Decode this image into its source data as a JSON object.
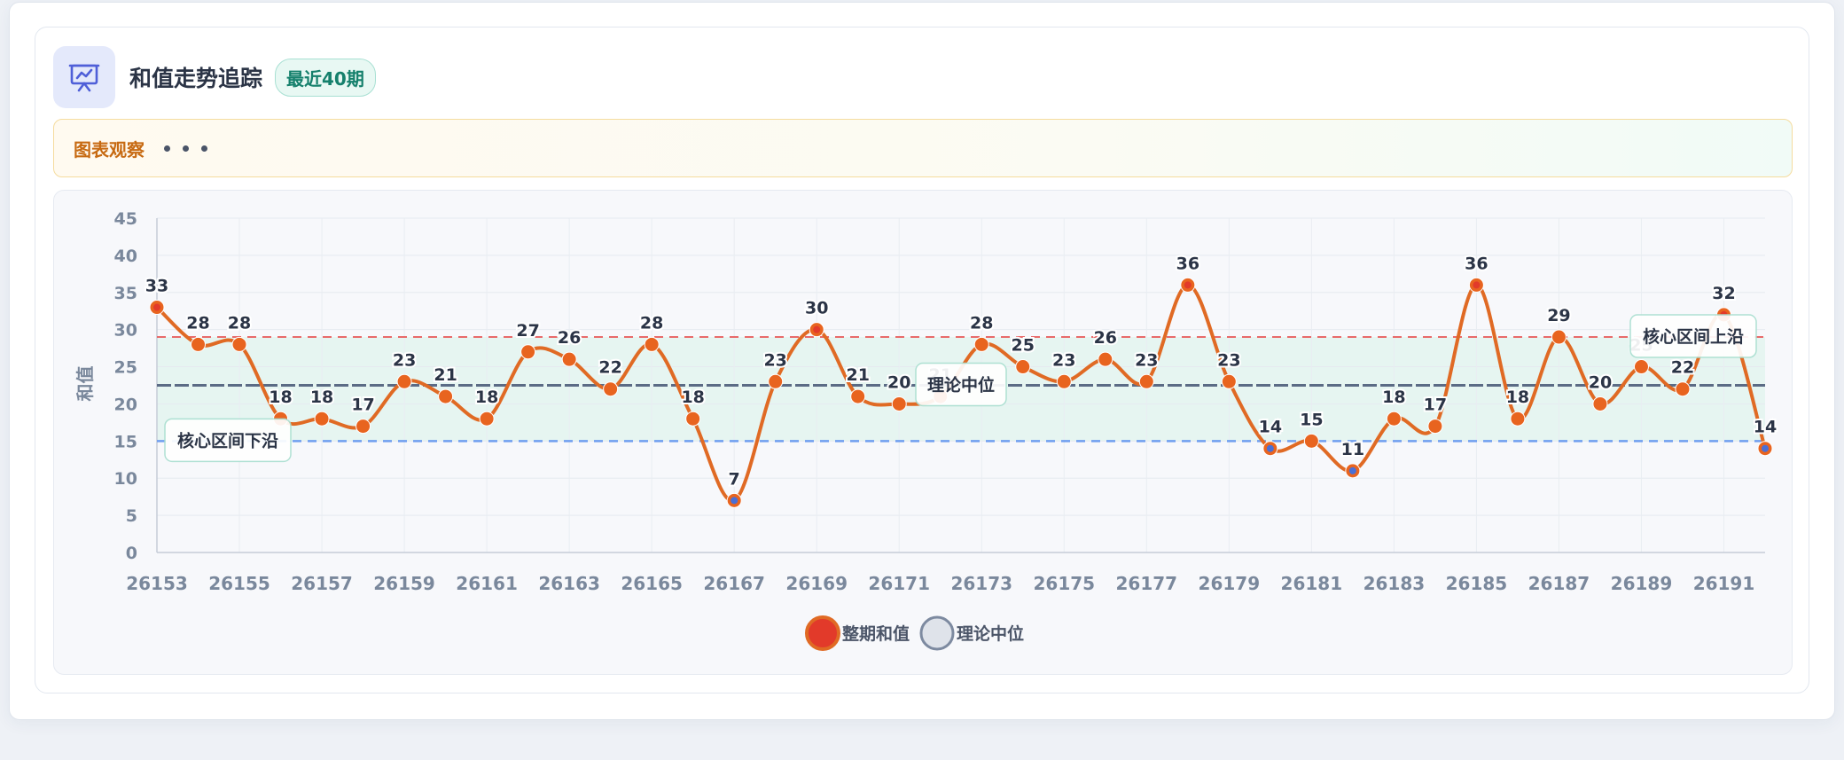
{
  "header": {
    "title": "和值走势追踪",
    "badge": "最近40期",
    "icon": "chart-presentation-icon"
  },
  "observation": {
    "title": "图表观察",
    "dots_icon": "more-dots-icon"
  },
  "colors": {
    "line": "#e06a24",
    "point": "#e8641f",
    "point_high": "#e23a2a",
    "point_low": "#4a6fd6",
    "band_fill": "#e3f5ee",
    "upper_line": "#e86a6a",
    "lower_line": "#6f9ef0",
    "median_line": "#5b6b85",
    "axis_text": "#7a889c"
  },
  "chart_data": {
    "type": "line",
    "x": [
      26153,
      26154,
      26155,
      26156,
      26157,
      26158,
      26159,
      26160,
      26161,
      26162,
      26163,
      26164,
      26165,
      26166,
      26167,
      26168,
      26169,
      26170,
      26171,
      26172,
      26173,
      26174,
      26175,
      26176,
      26177,
      26178,
      26179,
      26180,
      26181,
      26182,
      26183,
      26184,
      26185,
      26186,
      26187,
      26188,
      26189,
      26190,
      26191,
      26192
    ],
    "x_tick_labels": [
      "26153",
      "26155",
      "26157",
      "26159",
      "26161",
      "26163",
      "26165",
      "26167",
      "26169",
      "26171",
      "26173",
      "26175",
      "26177",
      "26179",
      "26181",
      "26183",
      "26185",
      "26187",
      "26189",
      "26191"
    ],
    "series": [
      {
        "name": "整期和值",
        "values": [
          33,
          28,
          28,
          18,
          18,
          17,
          23,
          21,
          18,
          27,
          26,
          22,
          28,
          18,
          7,
          23,
          30,
          21,
          20,
          21,
          28,
          25,
          23,
          26,
          23,
          36,
          23,
          14,
          15,
          11,
          18,
          17,
          36,
          18,
          29,
          20,
          25,
          22,
          32,
          14
        ]
      }
    ],
    "reference_lines": [
      {
        "name": "理论中位",
        "value": 22.5
      },
      {
        "name": "核心区间上沿",
        "value": 29
      },
      {
        "name": "核心区间下沿",
        "value": 15
      }
    ],
    "band": [
      15,
      29
    ],
    "ylabel": "和值",
    "ylim": [
      0,
      45
    ],
    "yticks": [
      0,
      5,
      10,
      15,
      20,
      25,
      30,
      35,
      40,
      45
    ],
    "grid": true,
    "legend": [
      {
        "label": "整期和值"
      },
      {
        "label": "理论中位"
      }
    ],
    "legend_position": "bottom-center"
  }
}
